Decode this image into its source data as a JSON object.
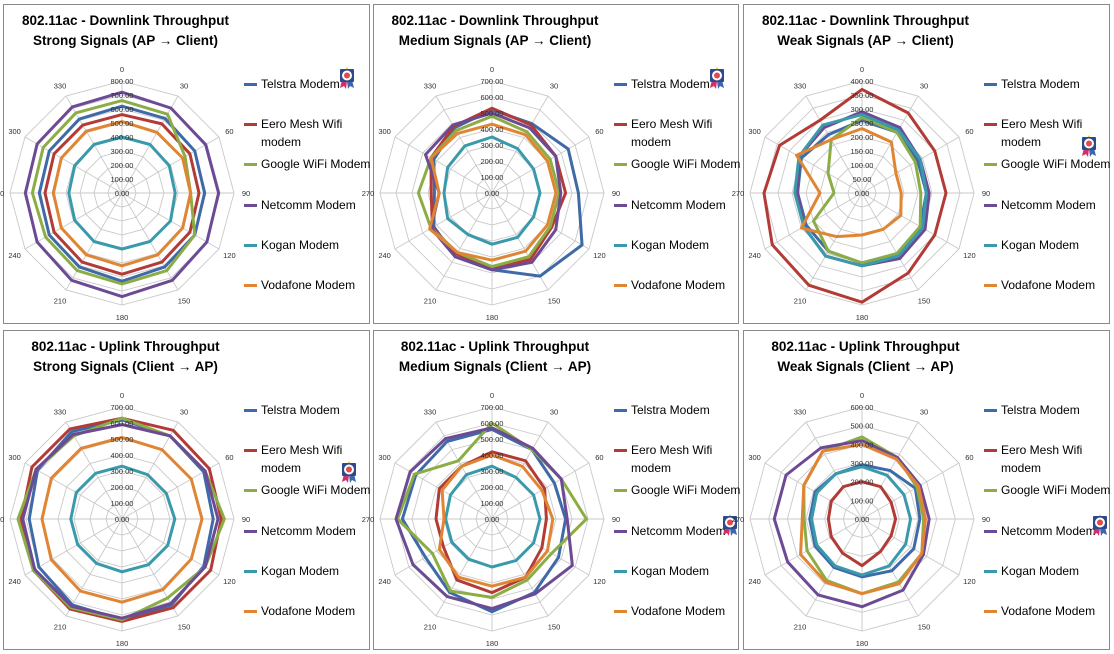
{
  "series_names": [
    "Telstra Modem",
    "Eero Mesh Wifi modem",
    "Google WiFi Modem",
    "Netcomm Modem",
    "Kogan Modem",
    "Vodafone Modem"
  ],
  "series_colors": [
    "#3e6aa8",
    "#b23b36",
    "#8cad45",
    "#6c4b94",
    "#3a9aab",
    "#e08533"
  ],
  "angle_labels": [
    "0",
    "30",
    "60",
    "90",
    "120",
    "150",
    "180",
    "210",
    "240",
    "270",
    "300",
    "330"
  ],
  "award_icon": "award-ribbon-icon",
  "chart_data": [
    {
      "type": "radar",
      "title_line1": "802.11ac - Downlink Throughput",
      "title_line2": "Strong Signals (AP → Client)",
      "rmax": 800,
      "rticks": [
        "0.00",
        "100.00",
        "200.00",
        "300.00",
        "400.00",
        "500.00",
        "600.00",
        "700.00",
        "800.00"
      ],
      "award_on": "Telstra Modem",
      "series": [
        {
          "name": "Telstra Modem",
          "values": [
            620,
            615,
            600,
            590,
            600,
            610,
            630,
            610,
            600,
            590,
            600,
            610
          ]
        },
        {
          "name": "Eero Mesh Wifi modem",
          "values": [
            560,
            570,
            560,
            550,
            560,
            570,
            580,
            570,
            560,
            550,
            560,
            560
          ]
        },
        {
          "name": "Google WiFi Modem",
          "values": [
            660,
            650,
            520,
            490,
            600,
            640,
            650,
            640,
            630,
            640,
            650,
            660
          ]
        },
        {
          "name": "Netcomm Modem",
          "values": [
            720,
            700,
            690,
            690,
            700,
            720,
            740,
            720,
            700,
            690,
            700,
            710
          ]
        },
        {
          "name": "Kogan Modem",
          "values": [
            400,
            400,
            390,
            380,
            400,
            400,
            400,
            400,
            390,
            380,
            390,
            400
          ]
        },
        {
          "name": "Vodafone Modem",
          "values": [
            510,
            500,
            500,
            490,
            500,
            510,
            520,
            510,
            500,
            490,
            500,
            510
          ]
        }
      ]
    },
    {
      "type": "radar",
      "title_line1": "802.11ac - Downlink Throughput",
      "title_line2": "Medium Signals (AP → Client)",
      "rmax": 700,
      "rticks": [
        "0.00",
        "100.00",
        "200.00",
        "300.00",
        "400.00",
        "500.00",
        "600.00",
        "700.00"
      ],
      "award_on": "Telstra Modem",
      "series": [
        {
          "name": "Telstra Modem",
          "values": [
            520,
            500,
            550,
            540,
            650,
            600,
            480,
            460,
            420,
            360,
            420,
            470
          ]
        },
        {
          "name": "Eero Mesh Wifi modem",
          "values": [
            530,
            490,
            460,
            460,
            430,
            480,
            470,
            440,
            430,
            380,
            440,
            480
          ]
        },
        {
          "name": "Google WiFi Modem",
          "values": [
            480,
            440,
            420,
            420,
            420,
            460,
            460,
            430,
            440,
            460,
            440,
            450
          ]
        },
        {
          "name": "Netcomm Modem",
          "values": [
            500,
            470,
            460,
            430,
            460,
            500,
            480,
            460,
            440,
            330,
            480,
            490
          ]
        },
        {
          "name": "Kogan Modem",
          "values": [
            350,
            320,
            300,
            300,
            300,
            320,
            320,
            300,
            320,
            300,
            320,
            340
          ]
        },
        {
          "name": "Vodafone Modem",
          "values": [
            430,
            420,
            400,
            400,
            400,
            420,
            420,
            430,
            450,
            330,
            440,
            430
          ]
        }
      ]
    },
    {
      "type": "radar",
      "title_line1": "802.11ac - Downlink Throughput",
      "title_line2": "Weak Signals (AP → Client)",
      "rmax": 400,
      "rticks": [
        "0.00",
        "50.00",
        "100.00",
        "150.00",
        "200.00",
        "250.00",
        "300.00",
        "350.00",
        "400.00"
      ],
      "award_on": "Eero Mesh Wifi modem",
      "series": [
        {
          "name": "Telstra Modem",
          "values": [
            260,
            250,
            230,
            230,
            240,
            250,
            250,
            240,
            230,
            230,
            250,
            240
          ]
        },
        {
          "name": "Eero Mesh Wifi modem",
          "values": [
            370,
            330,
            300,
            300,
            300,
            330,
            390,
            380,
            370,
            350,
            340,
            300
          ]
        },
        {
          "name": "Google WiFi Modem",
          "values": [
            270,
            250,
            220,
            210,
            240,
            250,
            250,
            240,
            200,
            100,
            140,
            220
          ]
        },
        {
          "name": "Netcomm Modem",
          "values": [
            290,
            270,
            240,
            240,
            260,
            270,
            260,
            260,
            240,
            230,
            260,
            270
          ]
        },
        {
          "name": "Kogan Modem",
          "values": [
            280,
            260,
            240,
            230,
            250,
            260,
            260,
            260,
            240,
            240,
            260,
            280
          ]
        },
        {
          "name": "Vodafone Modem",
          "values": [
            230,
            210,
            140,
            140,
            160,
            150,
            150,
            180,
            250,
            150,
            270,
            220
          ]
        }
      ]
    },
    {
      "type": "radar",
      "title_line1": "802.11ac - Uplink Throughput",
      "title_line2": "Strong Signals (Client → AP)",
      "rmax": 700,
      "rticks": [
        "0.00",
        "100.00",
        "200.00",
        "300.00",
        "400.00",
        "500.00",
        "600.00",
        "700.00"
      ],
      "award_on": "Eero Mesh Wifi modem",
      "series": [
        {
          "name": "Telstra Modem",
          "values": [
            620,
            600,
            590,
            570,
            590,
            620,
            630,
            620,
            600,
            580,
            610,
            630
          ]
        },
        {
          "name": "Eero Mesh Wifi modem",
          "values": [
            630,
            640,
            630,
            620,
            640,
            640,
            640,
            650,
            640,
            630,
            650,
            650
          ]
        },
        {
          "name": "Google WiFi Modem",
          "values": [
            630,
            600,
            600,
            640,
            600,
            570,
            630,
            640,
            640,
            650,
            620,
            600
          ]
        },
        {
          "name": "Netcomm Modem",
          "values": [
            590,
            600,
            600,
            600,
            600,
            610,
            620,
            630,
            630,
            620,
            620,
            610
          ]
        },
        {
          "name": "Kogan Modem",
          "values": [
            330,
            320,
            320,
            330,
            330,
            330,
            330,
            320,
            320,
            320,
            330,
            330
          ]
        },
        {
          "name": "Vodafone Modem",
          "values": [
            510,
            500,
            500,
            500,
            500,
            510,
            520,
            520,
            510,
            500,
            510,
            510
          ]
        }
      ]
    },
    {
      "type": "radar",
      "title_line1": "802.11ac - Uplink Throughput",
      "title_line2": "Medium Signals (Client → AP)",
      "rmax": 700,
      "rticks": [
        "0.00",
        "100.00",
        "200.00",
        "300.00",
        "400.00",
        "500.00",
        "600.00",
        "700.00"
      ],
      "award_on": "Netcomm Modem",
      "series": [
        {
          "name": "Telstra Modem",
          "values": [
            560,
            500,
            450,
            460,
            480,
            530,
            580,
            530,
            480,
            560,
            550,
            560
          ]
        },
        {
          "name": "Eero Mesh Wifi modem",
          "values": [
            420,
            420,
            380,
            340,
            360,
            420,
            460,
            440,
            350,
            350,
            380,
            380
          ]
        },
        {
          "name": "Google WiFi Modem",
          "values": [
            600,
            500,
            500,
            590,
            430,
            440,
            490,
            520,
            430,
            590,
            560,
            420
          ]
        },
        {
          "name": "Netcomm Modem",
          "values": [
            570,
            510,
            500,
            470,
            580,
            540,
            560,
            560,
            570,
            600,
            590,
            580
          ]
        },
        {
          "name": "Kogan Modem",
          "values": [
            330,
            300,
            300,
            300,
            300,
            300,
            300,
            290,
            290,
            290,
            300,
            320
          ]
        },
        {
          "name": "Vodafone Modem",
          "values": [
            400,
            380,
            360,
            380,
            400,
            420,
            420,
            420,
            380,
            300,
            360,
            380
          ]
        }
      ]
    },
    {
      "type": "radar",
      "title_line1": "802.11ac - Uplink Throughput",
      "title_line2": "Weak Signals (Client → AP)",
      "rmax": 600,
      "rticks": [
        "0.00",
        "100.00",
        "200.00",
        "300.00",
        "400.00",
        "500.00",
        "600.00"
      ],
      "award_on": "Netcomm Modem",
      "series": [
        {
          "name": "Telstra Modem",
          "values": [
            290,
            300,
            330,
            310,
            320,
            320,
            310,
            300,
            290,
            280,
            290,
            280
          ]
        },
        {
          "name": "Eero Mesh Wifi modem",
          "values": [
            200,
            200,
            180,
            180,
            180,
            200,
            250,
            210,
            190,
            180,
            190,
            200
          ]
        },
        {
          "name": "Google WiFi Modem",
          "values": [
            440,
            380,
            340,
            330,
            370,
            390,
            400,
            380,
            340,
            310,
            360,
            420
          ]
        },
        {
          "name": "Netcomm Modem",
          "values": [
            420,
            380,
            360,
            360,
            380,
            440,
            470,
            470,
            460,
            470,
            470,
            440
          ]
        },
        {
          "name": "Kogan Modem",
          "values": [
            280,
            270,
            260,
            260,
            270,
            290,
            300,
            290,
            280,
            270,
            280,
            280
          ]
        },
        {
          "name": "Vodafone Modem",
          "values": [
            400,
            370,
            350,
            340,
            370,
            400,
            400,
            390,
            380,
            320,
            360,
            420
          ]
        }
      ]
    }
  ]
}
